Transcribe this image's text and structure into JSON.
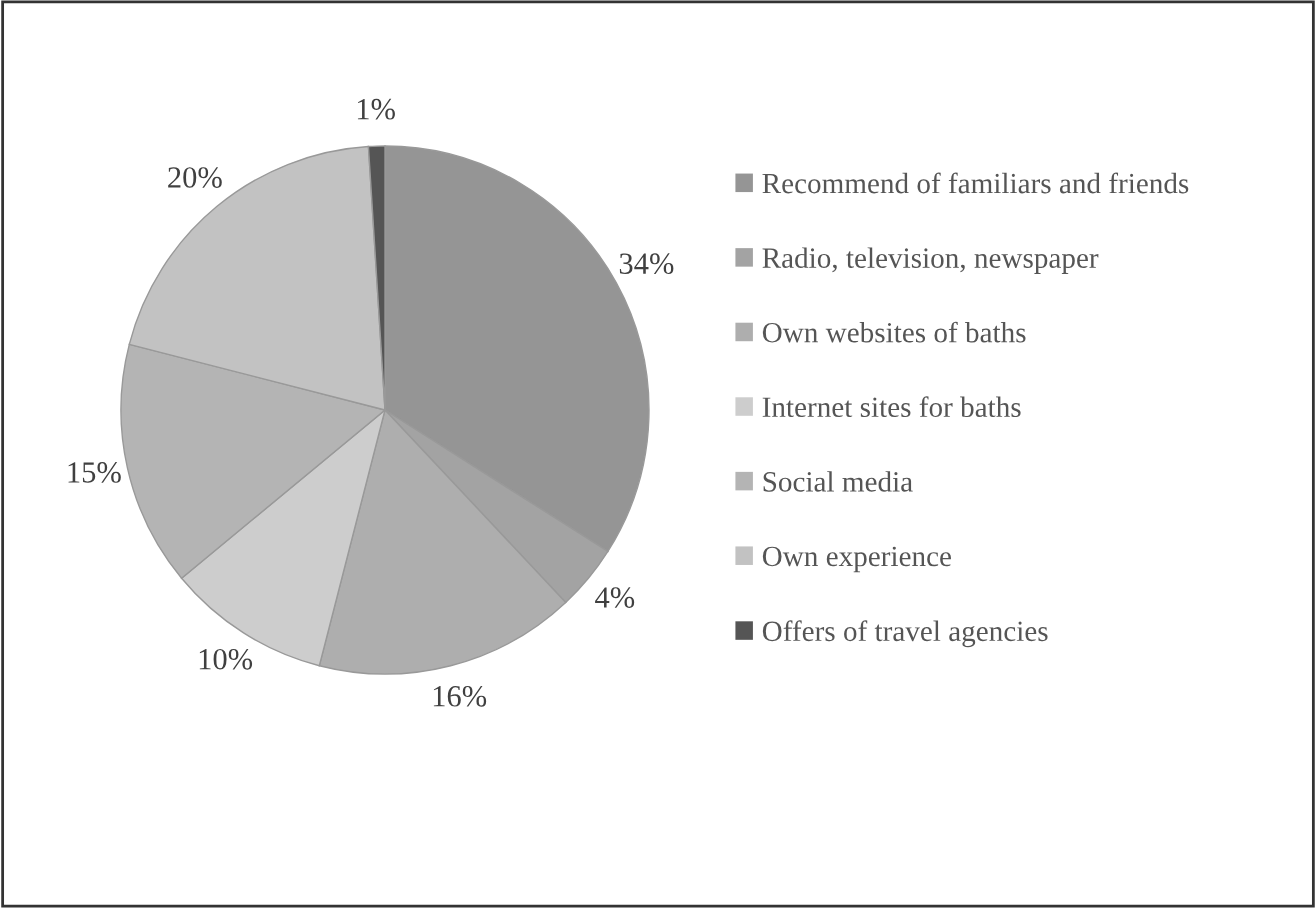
{
  "chart_data": {
    "type": "pie",
    "categories": [
      "Recommend of familiars and friends",
      "Radio, television, newspaper",
      "Own websites of baths",
      "Internet sites for baths",
      "Social media",
      "Own experience",
      "Offers of travel agencies"
    ],
    "values": [
      34,
      4,
      16,
      10,
      15,
      20,
      1
    ],
    "value_labels": [
      "34%",
      "4%",
      "16%",
      "10%",
      "15%",
      "20%",
      "1%"
    ],
    "colors": [
      "#959595",
      "#a3a3a3",
      "#aeaeae",
      "#cdcdcd",
      "#b4b4b4",
      "#c2c2c2",
      "#555555"
    ],
    "legend": "right"
  }
}
